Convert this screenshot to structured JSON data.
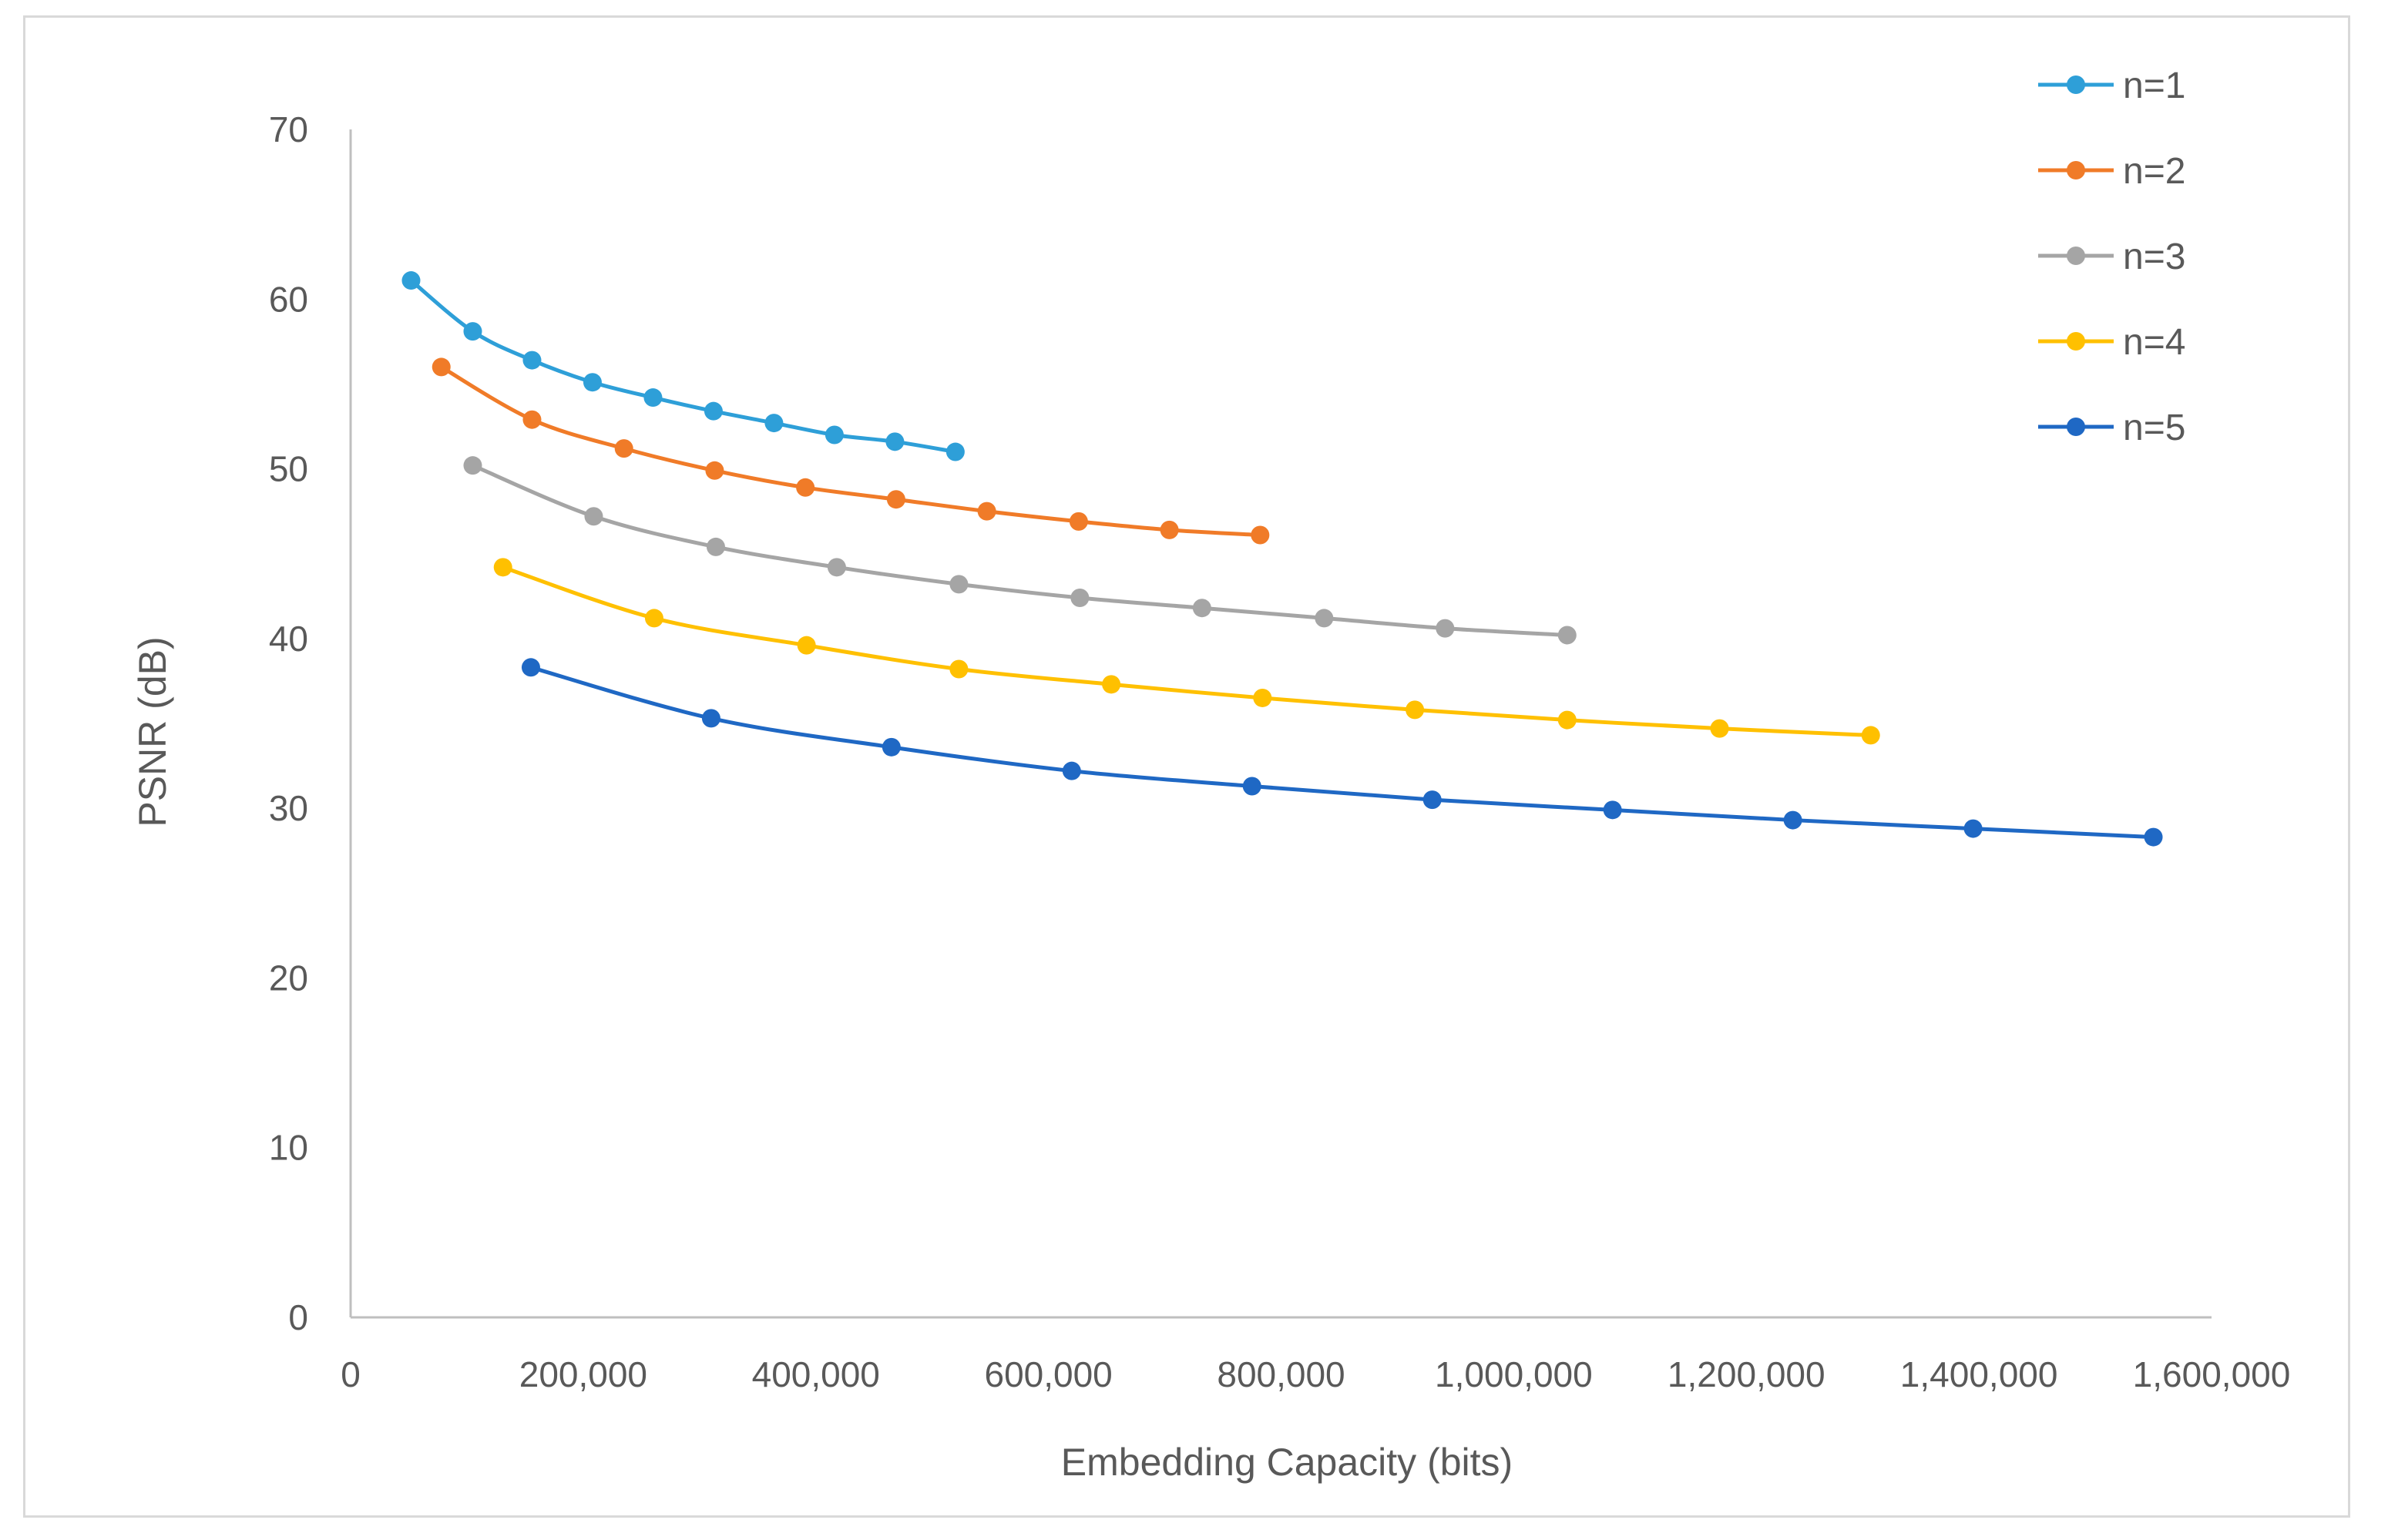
{
  "chart_data": {
    "type": "line",
    "title": "",
    "xlabel": "Embedding Capacity (bits)",
    "ylabel": "PSNR (dB)",
    "xlim": [
      0,
      1600000
    ],
    "ylim": [
      0,
      70
    ],
    "x_ticks": [
      0,
      200000,
      400000,
      600000,
      800000,
      1000000,
      1200000,
      1400000,
      1600000
    ],
    "x_tick_labels": [
      "0",
      "200,000",
      "400,000",
      "600,000",
      "800,000",
      "1,000,000",
      "1,200,000",
      "1,400,000",
      "1,600,000"
    ],
    "y_ticks": [
      0,
      10,
      20,
      30,
      40,
      50,
      60,
      70
    ],
    "y_tick_labels": [
      "0",
      "10",
      "20",
      "30",
      "40",
      "50",
      "60",
      "70"
    ],
    "grid": false,
    "legend_position": "top-right",
    "series": [
      {
        "name": "n=1",
        "color": "#2e9fd8",
        "points": [
          [
            52000,
            61.1
          ],
          [
            105000,
            58.1
          ],
          [
            156000,
            56.4
          ],
          [
            208000,
            55.1
          ],
          [
            260000,
            54.2
          ],
          [
            312000,
            53.4
          ],
          [
            364000,
            52.7
          ],
          [
            416000,
            52.0
          ],
          [
            468000,
            51.6
          ],
          [
            520000,
            51.0
          ]
        ]
      },
      {
        "name": "n=2",
        "color": "#f07b28",
        "points": [
          [
            78000,
            56.0
          ],
          [
            156000,
            52.9
          ],
          [
            235000,
            51.2
          ],
          [
            313000,
            49.9
          ],
          [
            391000,
            48.9
          ],
          [
            469000,
            48.2
          ],
          [
            547000,
            47.5
          ],
          [
            626000,
            46.9
          ],
          [
            704000,
            46.4
          ],
          [
            782000,
            46.1
          ]
        ]
      },
      {
        "name": "n=3",
        "color": "#a5a5a5",
        "points": [
          [
            105000,
            50.2
          ],
          [
            209000,
            47.2
          ],
          [
            314000,
            45.4
          ],
          [
            418000,
            44.2
          ],
          [
            523000,
            43.2
          ],
          [
            627000,
            42.4
          ],
          [
            732000,
            41.8
          ],
          [
            837000,
            41.2
          ],
          [
            941000,
            40.6
          ],
          [
            1046000,
            40.2
          ]
        ]
      },
      {
        "name": "n=4",
        "color": "#ffc000",
        "points": [
          [
            131000,
            44.2
          ],
          [
            261000,
            41.2
          ],
          [
            392000,
            39.6
          ],
          [
            523000,
            38.2
          ],
          [
            654000,
            37.3
          ],
          [
            784000,
            36.5
          ],
          [
            915000,
            35.8
          ],
          [
            1046000,
            35.2
          ],
          [
            1177000,
            34.7
          ],
          [
            1307000,
            34.3
          ]
        ]
      },
      {
        "name": "n=5",
        "color": "#1f68c4",
        "points": [
          [
            155000,
            38.3
          ],
          [
            310000,
            35.3
          ],
          [
            465000,
            33.6
          ],
          [
            620000,
            32.2
          ],
          [
            775000,
            31.3
          ],
          [
            930000,
            30.5
          ],
          [
            1085000,
            29.9
          ],
          [
            1240000,
            29.3
          ],
          [
            1395000,
            28.8
          ],
          [
            1550000,
            28.3
          ]
        ]
      }
    ]
  }
}
